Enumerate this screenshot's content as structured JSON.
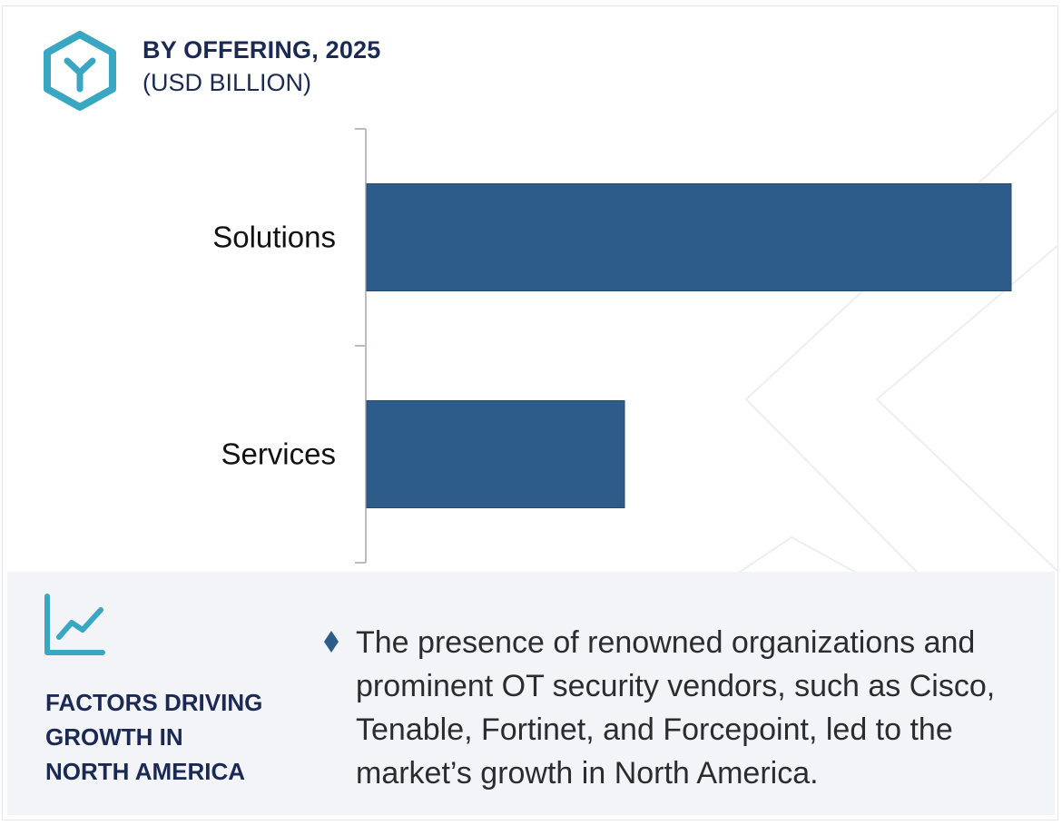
{
  "header": {
    "title": "BY OFFERING, 2025",
    "subtitle": "(USD BILLION)",
    "logo_icon": "hexagon-y-logo-icon"
  },
  "colors": {
    "bar": "#2e5c8a",
    "accent": "#3aa7c2",
    "heading": "#1b2a55",
    "panel_bg": "#f3f4f8"
  },
  "chart_data": {
    "type": "bar",
    "orientation": "horizontal",
    "categories": [
      "Solutions",
      "Services"
    ],
    "values": [
      100,
      40
    ],
    "title": "BY OFFERING, 2025",
    "subtitle": "(USD BILLION)",
    "xlabel": "",
    "ylabel": "",
    "xlim": [
      0,
      100
    ],
    "grid": false,
    "legend": "none"
  },
  "factors": {
    "icon": "trend-chart-icon",
    "title": "FACTORS DRIVING\nGROWTH IN\nNORTH AMERICA",
    "bullet_icon": "diamond-bullet-icon",
    "text": "The presence of renowned organizations and prominent OT security vendors, such as Cisco, Tenable, Fortinet, and Forcepoint, led to the market’s growth in North America."
  }
}
